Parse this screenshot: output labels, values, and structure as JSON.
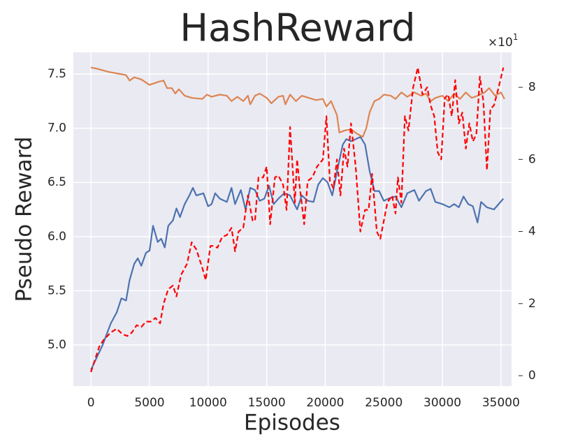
{
  "chart_data": {
    "type": "line",
    "title": "HashReward",
    "xlabel": "Episodes",
    "ylabel": "Pseudo Reward",
    "offset_label": "×10",
    "offset_exponent": "1",
    "grid": true,
    "xlim": [
      -1500,
      35900
    ],
    "xticks": [
      0,
      5000,
      10000,
      15000,
      20000,
      25000,
      30000,
      35000
    ],
    "ylim": [
      4.62,
      7.7
    ],
    "yticks": [
      {
        "value": 5,
        "label": "5.0"
      },
      5.5,
      {
        "value": 6,
        "label": "6.0"
      },
      6.5,
      {
        "value": 7,
        "label": "7.0"
      },
      7.5
    ],
    "y2lim": [
      -0.29,
      8.97
    ],
    "y2ticks": [
      0,
      2,
      4,
      6,
      8
    ],
    "series": [
      {
        "color": "#4c72b0",
        "axis": "y",
        "dashed": false,
        "x": [
          0,
          1000,
          1700,
          2200,
          2600,
          3000,
          3300,
          3700,
          4000,
          4300,
          4700,
          5000,
          5300,
          5700,
          6000,
          6300,
          6600,
          7000,
          7300,
          7600,
          8000,
          8400,
          8700,
          9000,
          9600,
          10000,
          10300,
          10600,
          11000,
          11600,
          12000,
          12300,
          12800,
          13200,
          13600,
          14000,
          14400,
          14800,
          15200,
          15600,
          16000,
          16500,
          17000,
          17600,
          18000,
          18500,
          19000,
          19400,
          19800,
          20200,
          20600,
          21000,
          21500,
          21800,
          22200,
          22600,
          23000,
          23400,
          23800,
          24200,
          24600,
          25000,
          25400,
          26000,
          26500,
          27000,
          27600,
          28000,
          28600,
          29000,
          29400,
          30000,
          30600,
          31000,
          31400,
          31800,
          32200,
          32600,
          33000,
          33300,
          33800,
          34400,
          35200
        ],
        "values": [
          4.77,
          5.0,
          5.2,
          5.3,
          5.43,
          5.41,
          5.6,
          5.75,
          5.8,
          5.73,
          5.85,
          5.87,
          6.1,
          5.95,
          5.98,
          5.9,
          6.1,
          6.15,
          6.26,
          6.18,
          6.3,
          6.38,
          6.45,
          6.38,
          6.4,
          6.28,
          6.3,
          6.4,
          6.35,
          6.32,
          6.45,
          6.3,
          6.43,
          6.25,
          6.45,
          6.43,
          6.33,
          6.35,
          6.47,
          6.3,
          6.35,
          6.4,
          6.38,
          6.25,
          6.38,
          6.33,
          6.32,
          6.48,
          6.54,
          6.5,
          6.38,
          6.6,
          6.85,
          6.9,
          6.88,
          6.9,
          6.92,
          6.85,
          6.6,
          6.42,
          6.42,
          6.33,
          6.35,
          6.37,
          6.27,
          6.4,
          6.43,
          6.33,
          6.42,
          6.44,
          6.32,
          6.3,
          6.27,
          6.3,
          6.27,
          6.37,
          6.3,
          6.28,
          6.13,
          6.32,
          6.27,
          6.25,
          6.35
        ]
      },
      {
        "color": "#dd8452",
        "axis": "y",
        "dashed": false,
        "x": [
          0,
          500,
          1500,
          2500,
          3000,
          3300,
          3700,
          4300,
          5000,
          5800,
          6200,
          6500,
          6900,
          7200,
          7500,
          8000,
          8600,
          9500,
          9900,
          10300,
          11000,
          11600,
          12000,
          12500,
          13000,
          13400,
          13600,
          14000,
          14400,
          15000,
          15400,
          16000,
          16400,
          16600,
          17000,
          17500,
          18000,
          18600,
          19200,
          19800,
          20100,
          20500,
          21000,
          21200,
          21700,
          22200,
          22700,
          23200,
          23500,
          23800,
          24200,
          24600,
          25000,
          25600,
          26000,
          26500,
          27000,
          27600,
          28200,
          28600,
          29000,
          29400,
          30000,
          30500,
          31000,
          31500,
          32000,
          32500,
          33000,
          33600,
          34000,
          34500,
          35000,
          35300
        ],
        "values": [
          7.56,
          7.55,
          7.52,
          7.5,
          7.49,
          7.44,
          7.47,
          7.45,
          7.4,
          7.43,
          7.44,
          7.37,
          7.37,
          7.32,
          7.36,
          7.3,
          7.28,
          7.27,
          7.31,
          7.29,
          7.31,
          7.3,
          7.25,
          7.29,
          7.25,
          7.3,
          7.22,
          7.3,
          7.32,
          7.28,
          7.23,
          7.29,
          7.3,
          7.22,
          7.31,
          7.25,
          7.3,
          7.28,
          7.26,
          7.27,
          7.2,
          7.25,
          7.12,
          6.96,
          6.98,
          6.99,
          6.95,
          6.92,
          7.0,
          7.15,
          7.25,
          7.27,
          7.31,
          7.3,
          7.27,
          7.33,
          7.29,
          7.33,
          7.3,
          7.32,
          7.25,
          7.28,
          7.3,
          7.25,
          7.32,
          7.27,
          7.33,
          7.28,
          7.3,
          7.33,
          7.37,
          7.3,
          7.33,
          7.27
        ]
      },
      {
        "color": "#ff0000",
        "axis": "y2",
        "dashed": true,
        "x": [
          0,
          300,
          700,
          1100,
          1700,
          2200,
          2700,
          3100,
          3500,
          3900,
          4300,
          4700,
          5100,
          5500,
          5900,
          6200,
          6600,
          7000,
          7300,
          7700,
          8200,
          8600,
          9000,
          9500,
          9800,
          10200,
          10500,
          10800,
          11200,
          11600,
          12000,
          12300,
          12600,
          13000,
          13400,
          13800,
          14000,
          14300,
          14700,
          15000,
          15300,
          15700,
          16000,
          16400,
          16700,
          17000,
          17400,
          17600,
          17800,
          18200,
          18500,
          18900,
          19300,
          19800,
          20100,
          20400,
          20700,
          21000,
          21300,
          21600,
          21900,
          22200,
          22600,
          23000,
          23400,
          23700,
          24000,
          24400,
          24700,
          25000,
          25300,
          25700,
          26000,
          26200,
          26500,
          26800,
          27100,
          27500,
          27900,
          28300,
          28700,
          29000,
          29300,
          29600,
          29900,
          30200,
          30500,
          30800,
          31100,
          31400,
          31700,
          32000,
          32300,
          32600,
          32900,
          33200,
          33500,
          33800,
          34100,
          34400,
          34800,
          35200
        ],
        "values": [
          0.1,
          0.4,
          0.8,
          1.0,
          1.2,
          1.3,
          1.15,
          1.1,
          1.2,
          1.4,
          1.35,
          1.5,
          1.5,
          1.6,
          1.45,
          2.0,
          2.4,
          2.5,
          2.2,
          2.8,
          3.1,
          3.7,
          3.5,
          3.0,
          2.65,
          3.6,
          3.6,
          3.55,
          3.85,
          3.9,
          4.1,
          3.45,
          4.0,
          4.1,
          5.0,
          4.3,
          4.3,
          5.5,
          5.5,
          5.8,
          4.2,
          5.5,
          5.55,
          5.3,
          4.6,
          6.9,
          4.8,
          6.0,
          5.3,
          4.2,
          5.4,
          5.5,
          5.8,
          6.0,
          7.2,
          5.4,
          5.2,
          6.0,
          5.0,
          6.3,
          5.8,
          7.0,
          5.8,
          4.0,
          4.6,
          4.6,
          5.6,
          4.0,
          3.8,
          4.3,
          4.8,
          5.0,
          4.5,
          5.5,
          4.8,
          7.2,
          6.8,
          8.0,
          8.55,
          7.8,
          8.0,
          7.5,
          7.2,
          6.2,
          6.0,
          7.7,
          7.8,
          7.2,
          8.2,
          7.0,
          7.3,
          6.3,
          7.0,
          6.5,
          6.7,
          8.3,
          7.6,
          5.7,
          7.4,
          7.5,
          8.0,
          8.55
        ]
      }
    ]
  }
}
